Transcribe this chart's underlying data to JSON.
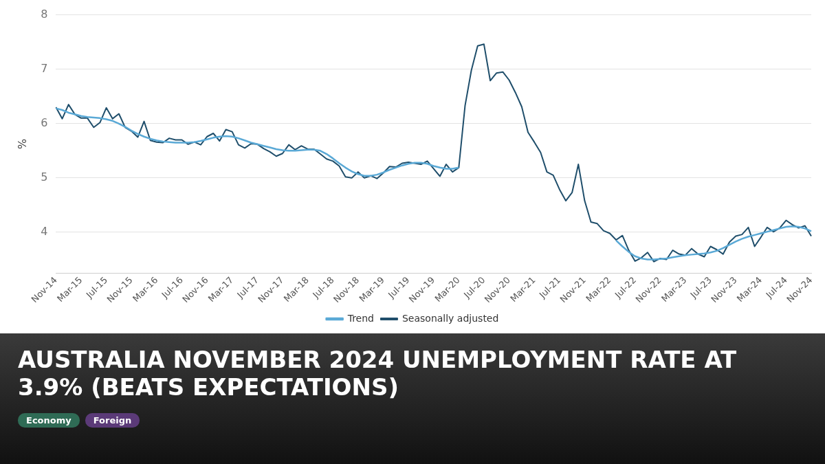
{
  "chart_data": {
    "type": "line",
    "title": "AUSTRALIA NOVEMBER 2024 UNEMPLOYMENT RATE AT 3.9% (BEATS EXPECTATIONS)",
    "ylabel": "%",
    "categories": [
      "Nov-14",
      null,
      null,
      null,
      "Mar-15",
      null,
      null,
      null,
      "Jul-15",
      null,
      null,
      null,
      "Nov-15",
      null,
      null,
      null,
      "Mar-16",
      null,
      null,
      null,
      "Jul-16",
      null,
      null,
      null,
      "Nov-16",
      null,
      null,
      null,
      "Mar-17",
      null,
      null,
      null,
      "Jul-17",
      null,
      null,
      null,
      "Nov-17",
      null,
      null,
      null,
      "Mar-18",
      null,
      null,
      null,
      "Jul-18",
      null,
      null,
      null,
      "Nov-18",
      null,
      null,
      null,
      "Mar-19",
      null,
      null,
      null,
      "Jul-19",
      null,
      null,
      null,
      "Nov-19",
      null,
      null,
      null,
      "Mar-20",
      null,
      null,
      null,
      "Jul-20",
      null,
      null,
      null,
      "Nov-20",
      null,
      null,
      null,
      "Mar-21",
      null,
      null,
      null,
      "Jul-21",
      null,
      null,
      null,
      "Nov-21",
      null,
      null,
      null,
      "Mar-22",
      null,
      null,
      null,
      "Jul-22",
      null,
      null,
      null,
      "Nov-22",
      null,
      null,
      null,
      "Mar-23",
      null,
      null,
      null,
      "Jul-23",
      null,
      null,
      null,
      "Nov-23",
      null,
      null,
      null,
      "Mar-24",
      null,
      null,
      null,
      "Jul-24",
      null,
      null,
      null,
      "Nov-24"
    ],
    "series": [
      {
        "name": "Trend",
        "color": "#5aa9d6",
        "values": [
          6.28,
          6.25,
          6.2,
          6.17,
          6.14,
          6.12,
          6.11,
          6.1,
          6.08,
          6.05,
          6.0,
          5.94,
          5.87,
          5.81,
          5.76,
          5.72,
          5.69,
          5.67,
          5.66,
          5.65,
          5.65,
          5.65,
          5.66,
          5.68,
          5.71,
          5.74,
          5.76,
          5.77,
          5.76,
          5.73,
          5.69,
          5.65,
          5.62,
          5.59,
          5.56,
          5.53,
          5.51,
          5.5,
          5.5,
          5.51,
          5.52,
          5.52,
          5.5,
          5.44,
          5.36,
          5.27,
          5.19,
          5.12,
          5.07,
          5.04,
          5.04,
          5.06,
          5.1,
          5.15,
          5.19,
          5.23,
          5.26,
          5.28,
          5.28,
          5.26,
          5.22,
          5.19,
          5.17,
          5.17,
          5.19,
          null,
          null,
          null,
          null,
          null,
          null,
          null,
          null,
          null,
          null,
          null,
          null,
          null,
          null,
          null,
          null,
          null,
          null,
          null,
          null,
          null,
          null,
          null,
          null,
          3.85,
          3.74,
          3.64,
          3.56,
          3.52,
          3.5,
          3.5,
          3.51,
          3.52,
          3.54,
          3.56,
          3.58,
          3.59,
          3.6,
          3.61,
          3.63,
          3.66,
          3.71,
          3.77,
          3.83,
          3.88,
          3.92,
          3.95,
          3.98,
          4.01,
          4.04,
          4.07,
          4.1,
          4.11,
          4.1,
          4.07,
          4.02
        ]
      },
      {
        "name": "Seasonally adjusted",
        "color": "#1f4e6b",
        "values": [
          6.3,
          6.09,
          6.35,
          6.17,
          6.1,
          6.1,
          5.93,
          6.02,
          6.29,
          6.09,
          6.18,
          5.93,
          5.86,
          5.75,
          6.04,
          5.69,
          5.66,
          5.65,
          5.73,
          5.7,
          5.7,
          5.62,
          5.66,
          5.61,
          5.76,
          5.82,
          5.68,
          5.89,
          5.85,
          5.61,
          5.55,
          5.63,
          5.62,
          5.54,
          5.48,
          5.4,
          5.45,
          5.61,
          5.52,
          5.59,
          5.53,
          5.53,
          5.44,
          5.35,
          5.31,
          5.22,
          5.02,
          5.0,
          5.11,
          5.0,
          5.04,
          4.99,
          5.09,
          5.21,
          5.2,
          5.27,
          5.29,
          5.27,
          5.25,
          5.31,
          5.17,
          5.03,
          5.25,
          5.11,
          5.19,
          6.33,
          6.98,
          7.43,
          7.46,
          6.79,
          6.93,
          6.95,
          6.8,
          6.57,
          6.31,
          5.84,
          5.66,
          5.47,
          5.11,
          5.05,
          4.79,
          4.58,
          4.73,
          5.25,
          4.58,
          4.19,
          4.16,
          4.03,
          3.98,
          3.86,
          3.94,
          3.67,
          3.47,
          3.53,
          3.63,
          3.46,
          3.52,
          3.5,
          3.67,
          3.6,
          3.58,
          3.7,
          3.6,
          3.55,
          3.74,
          3.68,
          3.6,
          3.82,
          3.93,
          3.96,
          4.09,
          3.74,
          3.91,
          4.09,
          4.01,
          4.08,
          4.22,
          4.14,
          4.08,
          4.12,
          3.93
        ]
      }
    ],
    "ylim": [
      3.25,
      8
    ],
    "yticks": [
      4,
      5,
      6,
      7,
      8
    ],
    "grid": "y",
    "legend": "bottom",
    "marker": "none",
    "line_style": "solid",
    "annotations": [
      "Economy",
      "Foreign"
    ]
  }
}
